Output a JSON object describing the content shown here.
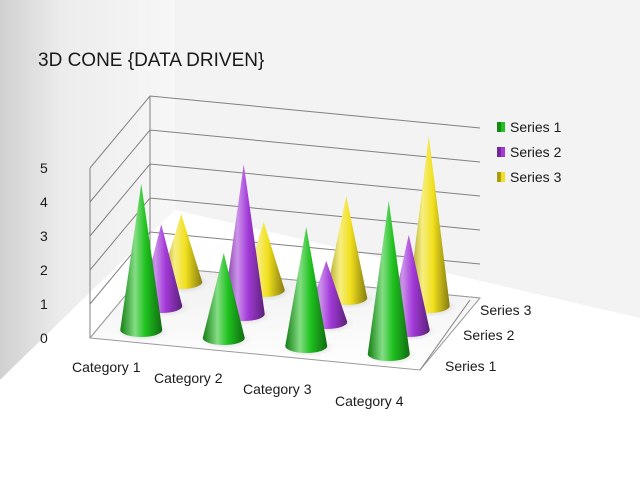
{
  "chart_data": {
    "type": "bar",
    "variant": "3d-cone",
    "title": "3D CONE {DATA DRIVEN}",
    "categories": [
      "Category 1",
      "Category 2",
      "Category 3",
      "Category 4"
    ],
    "series": [
      {
        "name": "Series 1",
        "color": "#1fc21f",
        "values": [
          4.3,
          2.5,
          3.5,
          4.5
        ]
      },
      {
        "name": "Series 2",
        "color": "#a33ad9",
        "values": [
          2.4,
          4.4,
          1.8,
          2.8
        ]
      },
      {
        "name": "Series 3",
        "color": "#f1e01d",
        "values": [
          2.0,
          2.0,
          3.0,
          5.0
        ]
      }
    ],
    "ylim": [
      0,
      5
    ],
    "yticks": [
      "0",
      "1",
      "2",
      "3",
      "4",
      "5"
    ],
    "grid": true,
    "legend": "right"
  }
}
